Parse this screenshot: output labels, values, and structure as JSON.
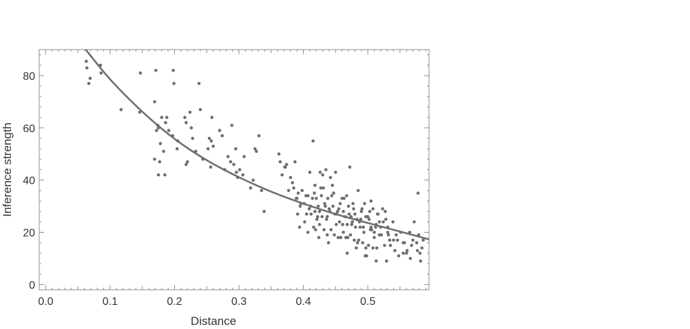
{
  "chart_data": {
    "type": "scatter",
    "title": "",
    "xlabel": "Distance",
    "ylabel": "Inference strength",
    "xlim": [
      -0.01,
      0.595
    ],
    "ylim": [
      -2,
      90
    ],
    "x_ticks": [
      "0.0",
      "0.1",
      "0.2",
      "0.3",
      "0.4",
      "0.5"
    ],
    "y_ticks": [
      "0",
      "20",
      "40",
      "60",
      "80"
    ],
    "grid": false,
    "legend": "none",
    "colors": {
      "points": "#6e6e6e",
      "curve": "#6e6e6e",
      "frame": "#8c8c8c",
      "text": "#333333"
    },
    "fit_curve": {
      "x": [
        0.062,
        0.1,
        0.15,
        0.2,
        0.25,
        0.3,
        0.35,
        0.4,
        0.45,
        0.5,
        0.55,
        0.595
      ],
      "y": [
        90,
        78.6,
        66.2,
        55.8,
        47.6,
        41.1,
        35.6,
        31.0,
        27.0,
        23.6,
        20.3,
        17.3
      ]
    },
    "points": {
      "x": [
        0.063,
        0.067,
        0.064,
        0.069,
        0.085,
        0.086,
        0.117,
        0.147,
        0.146,
        0.171,
        0.169,
        0.172,
        0.174,
        0.169,
        0.18,
        0.175,
        0.178,
        0.177,
        0.175,
        0.183,
        0.186,
        0.188,
        0.185,
        0.191,
        0.198,
        0.199,
        0.197,
        0.204,
        0.205,
        0.216,
        0.218,
        0.22,
        0.218,
        0.224,
        0.226,
        0.228,
        0.233,
        0.238,
        0.24,
        0.244,
        0.252,
        0.254,
        0.256,
        0.258,
        0.26,
        0.257,
        0.27,
        0.274,
        0.278,
        0.283,
        0.287,
        0.289,
        0.292,
        0.295,
        0.296,
        0.298,
        0.301,
        0.306,
        0.308,
        0.318,
        0.322,
        0.325,
        0.327,
        0.331,
        0.335,
        0.339,
        0.362,
        0.364,
        0.367,
        0.371,
        0.374,
        0.377,
        0.38,
        0.385,
        0.387,
        0.39,
        0.392,
        0.395,
        0.398,
        0.401,
        0.405,
        0.407,
        0.41,
        0.412,
        0.415,
        0.418,
        0.42,
        0.421,
        0.423,
        0.425,
        0.426,
        0.428,
        0.43,
        0.431,
        0.433,
        0.435,
        0.437,
        0.438,
        0.44,
        0.442,
        0.445,
        0.447,
        0.45,
        0.452,
        0.455,
        0.457,
        0.46,
        0.462,
        0.465,
        0.467,
        0.47,
        0.472,
        0.475,
        0.478,
        0.48,
        0.483,
        0.485,
        0.487,
        0.49,
        0.493,
        0.495,
        0.497,
        0.5,
        0.502,
        0.505,
        0.508,
        0.51,
        0.513,
        0.515,
        0.518,
        0.52,
        0.523,
        0.527,
        0.531,
        0.535,
        0.54,
        0.546,
        0.551,
        0.555,
        0.56,
        0.565,
        0.568,
        0.572,
        0.576,
        0.579,
        0.581,
        0.584,
        0.586,
        0.578,
        0.582,
        0.391,
        0.402,
        0.418,
        0.436,
        0.449,
        0.461,
        0.474,
        0.488,
        0.499,
        0.512,
        0.524,
        0.383,
        0.396,
        0.409,
        0.422,
        0.441,
        0.456,
        0.468,
        0.481,
        0.494,
        0.506,
        0.518,
        0.531,
        0.544,
        0.557,
        0.57,
        0.404,
        0.427,
        0.444,
        0.463,
        0.477,
        0.491,
        0.503,
        0.516,
        0.528,
        0.539,
        0.416,
        0.432,
        0.451,
        0.469,
        0.486,
        0.501,
        0.419,
        0.437,
        0.458,
        0.473,
        0.492,
        0.508,
        0.372,
        0.389,
        0.411,
        0.429,
        0.448,
        0.466,
        0.484,
        0.497,
        0.51,
        0.526,
        0.542,
        0.555,
        0.566,
        0.577,
        0.414,
        0.434,
        0.453,
        0.471,
        0.489,
        0.505,
        0.521,
        0.534,
        0.548,
        0.425,
        0.443,
        0.462,
        0.479,
        0.496,
        0.514,
        0.529,
        0.394,
        0.407,
        0.424,
        0.439,
        0.454,
        0.468,
        0.482,
        0.498,
        0.513,
        0.417,
        0.446,
        0.476,
        0.504,
        0.532,
        0.561
      ],
      "y": [
        85.5,
        77,
        83,
        79,
        84,
        81,
        67,
        81,
        66,
        82,
        70,
        59,
        61,
        48,
        64,
        60,
        54,
        47,
        42,
        51,
        62,
        64,
        42,
        59,
        82,
        77,
        57,
        52,
        55,
        64,
        62,
        47,
        46,
        66,
        60,
        56,
        51,
        77,
        67,
        48,
        52,
        56,
        45,
        64,
        53,
        55,
        59,
        57,
        44,
        49,
        47,
        61,
        46,
        52,
        43,
        41,
        44,
        42,
        49,
        37,
        40,
        52,
        51,
        57,
        36,
        28,
        50,
        47,
        42,
        45,
        46,
        36,
        41,
        37,
        47,
        33,
        35,
        30,
        36,
        31,
        27,
        34,
        43,
        27,
        55,
        38,
        33,
        25,
        30,
        28,
        43,
        34,
        42,
        37,
        31,
        44,
        26,
        33,
        29,
        41,
        38,
        35,
        43,
        27,
        29,
        31,
        33,
        28,
        26,
        34,
        30,
        45,
        23,
        29,
        27,
        25,
        36,
        24,
        28,
        22,
        31,
        26,
        26,
        25,
        32,
        29,
        20,
        23,
        27,
        24,
        22,
        29,
        28,
        22,
        15,
        17,
        17,
        20,
        16,
        12,
        20,
        15,
        24,
        16,
        19,
        12,
        14,
        17,
        35,
        9,
        27,
        24,
        28,
        25,
        27,
        23,
        26,
        22,
        26,
        22,
        24,
        39,
        31,
        29,
        26,
        28,
        24,
        23,
        22,
        20,
        21,
        19,
        20,
        19,
        16,
        17,
        34,
        37,
        34,
        33,
        31,
        29,
        28,
        27,
        25,
        24,
        22,
        21,
        23,
        18,
        17,
        15,
        21,
        19,
        18,
        19,
        16,
        14,
        45,
        33,
        30,
        26,
        19,
        18,
        16,
        14,
        18,
        15,
        13,
        12,
        10,
        13,
        33,
        30,
        28,
        27,
        25,
        22,
        19,
        17,
        11,
        23,
        21,
        20,
        17,
        11,
        14,
        9,
        22,
        20,
        18,
        16,
        18,
        12,
        14,
        11,
        9,
        35,
        30,
        24,
        21,
        19,
        13
      ]
    }
  }
}
